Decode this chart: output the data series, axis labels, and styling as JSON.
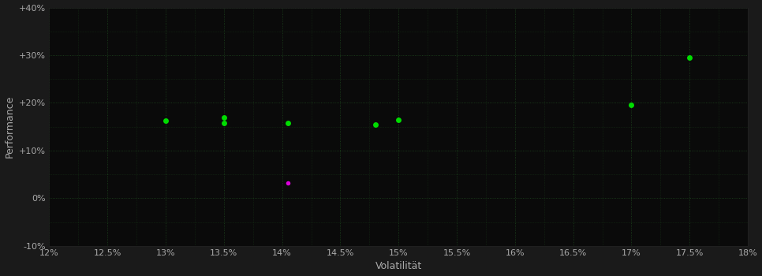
{
  "background_color": "#0d0d0d",
  "plot_bg_color": "#0a0a0a",
  "grid_color": "#2a6e2a",
  "xlabel": "Volatilität",
  "ylabel": "Performance",
  "xlim": [
    0.12,
    0.18
  ],
  "ylim": [
    -0.1,
    0.4
  ],
  "green_points": [
    [
      0.13,
      0.163
    ],
    [
      0.135,
      0.17
    ],
    [
      0.135,
      0.158
    ],
    [
      0.1405,
      0.158
    ],
    [
      0.148,
      0.155
    ],
    [
      0.15,
      0.165
    ],
    [
      0.17,
      0.195
    ],
    [
      0.175,
      0.295
    ]
  ],
  "magenta_points": [
    [
      0.1405,
      0.032
    ]
  ],
  "green_color": "#00dd00",
  "magenta_color": "#dd00dd",
  "marker_size": 5,
  "text_color": "#aaaaaa",
  "grid_alpha": 0.6,
  "tick_fontsize": 8,
  "label_fontsize": 9,
  "outer_bg": "#1a1a1a"
}
